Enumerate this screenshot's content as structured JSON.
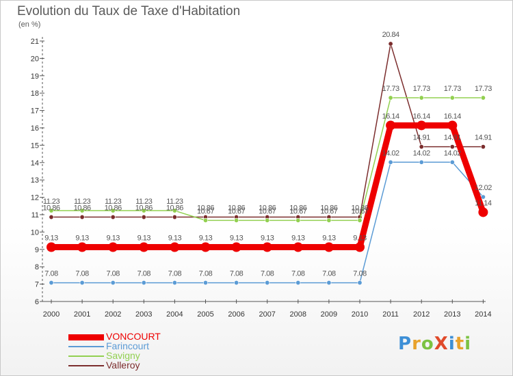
{
  "chart_title": "Evolution du Taux de Taxe d'Habitation",
  "chart_subtitle": "(en %)",
  "logo": {
    "text": "ProXiti",
    "letters": [
      "P",
      "r",
      "o",
      "X",
      "i",
      "t",
      "i"
    ],
    "colors": [
      "#3d8fd6",
      "#e8a22c",
      "#7cc242",
      "#e04a2a",
      "#3d8fd6",
      "#e8a22c",
      "#7cc242"
    ]
  },
  "chart_data": {
    "type": "line",
    "title": "Evolution du Taux de Taxe d'Habitation",
    "subtitle": "(en %)",
    "xlabel": "",
    "ylabel": "(en %)",
    "x": [
      "2000",
      "2001",
      "2002",
      "2003",
      "2004",
      "2005",
      "2006",
      "2007",
      "2008",
      "2009",
      "2010",
      "2011",
      "2012",
      "2013",
      "2014"
    ],
    "yticks": [
      "6",
      "7",
      "8",
      "9",
      "10",
      "11",
      "12",
      "13",
      "14",
      "15",
      "16",
      "17",
      "18",
      "19",
      "20",
      "21"
    ],
    "ylim": [
      6,
      21
    ],
    "grid": false,
    "legend_position": "bottom-left",
    "series": [
      {
        "name": "VONCOURT",
        "color": "#ee0000",
        "values": [
          9.13,
          9.13,
          9.13,
          9.13,
          9.13,
          9.13,
          9.13,
          9.13,
          9.13,
          9.13,
          9.13,
          16.14,
          16.14,
          16.14,
          11.14
        ],
        "labels": [
          "9.13",
          "9.13",
          "9.13",
          "9.13",
          "9.13",
          "9.13",
          "9.13",
          "9.13",
          "9.13",
          "9.13",
          "9.13",
          "16.14",
          "16.14",
          "16.14",
          "11.14"
        ]
      },
      {
        "name": "Farincourt",
        "color": "#5b9bd5",
        "values": [
          7.08,
          7.08,
          7.08,
          7.08,
          7.08,
          7.08,
          7.08,
          7.08,
          7.08,
          7.08,
          7.08,
          14.02,
          14.02,
          14.02,
          12.02
        ],
        "labels": [
          "7.08",
          "7.08",
          "7.08",
          "7.08",
          "7.08",
          "7.08",
          "7.08",
          "7.08",
          "7.08",
          "7.08",
          "7.08",
          "14.02",
          "14.02",
          "14.02",
          "12.02"
        ]
      },
      {
        "name": "Savigny",
        "color": "#92d050",
        "values": [
          11.23,
          11.23,
          11.23,
          11.23,
          11.23,
          10.67,
          10.67,
          10.67,
          10.67,
          10.67,
          10.67,
          17.73,
          17.73,
          17.73,
          17.73
        ],
        "labels": [
          "11.23",
          "11.23",
          "11.23",
          "11.23",
          "11.23",
          "10.67",
          "10.67",
          "10.67",
          "10.67",
          "10.67",
          "10.67",
          "17.73",
          "17.73",
          "17.73",
          "17.73"
        ]
      },
      {
        "name": "Valleroy",
        "color": "#7b2d2d",
        "values": [
          10.86,
          10.86,
          10.86,
          10.86,
          10.86,
          10.86,
          10.86,
          10.86,
          10.86,
          10.86,
          10.86,
          20.84,
          14.91,
          14.91,
          14.91
        ],
        "labels": [
          "10.86",
          "10.86",
          "10.86",
          "10.86",
          "10.86",
          "10.86",
          "10.86",
          "10.86",
          "10.86",
          "10.86",
          "10.86",
          "20.84",
          "14.91",
          "14.91",
          "14.91"
        ]
      }
    ]
  }
}
